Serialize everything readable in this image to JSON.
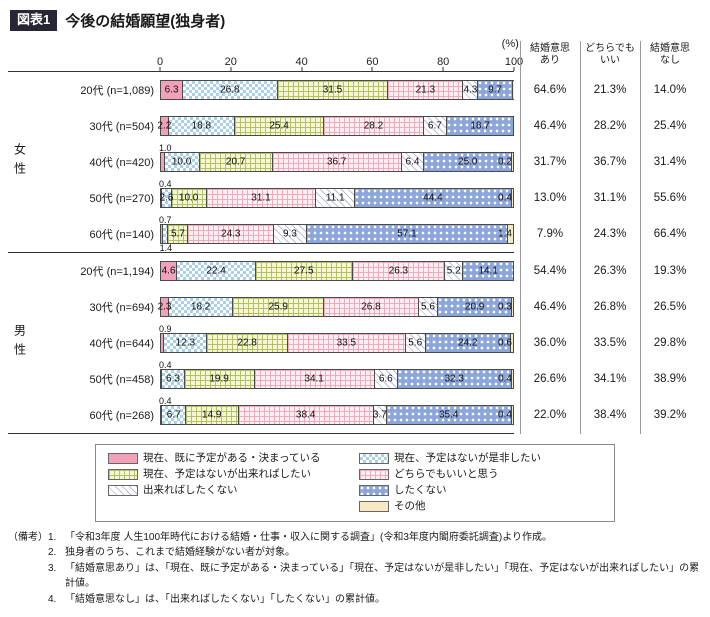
{
  "header": {
    "tag": "図表1",
    "title": "今後の結婚願望(独身者)"
  },
  "summary": {
    "columns": [
      "結婚意思\nあり",
      "どちらでも\nいい",
      "結婚意思\nなし"
    ]
  },
  "notes": {
    "tag": "（備考）",
    "items": [
      "「令和3年度 人生100年時代における結婚・仕事・収入に関する調査」(令和3年度内閣府委託調査)より作成。",
      "独身者のうち、これまで結婚経験がない者が対象。",
      "「結婚意思あり」は、「現在、既に予定がある・決まっている」「現在、予定はないが是非したい」「現在、予定はないが出来ればしたい」の累計値。",
      "「結婚意思なし」は、「出来ればしたくない」「したくない」の累計値。"
    ]
  },
  "colors": {
    "series": [
      "#f2a2b8",
      "#abd1ea",
      "#e9edba",
      "#f6ccd6",
      "#dcdff0",
      "#8ca5da",
      "#f9e9c2"
    ],
    "tag_background": "#262634",
    "tag_text": "#ffffff",
    "axis_line": "#333333",
    "table_divider": "#999999"
  },
  "chart_data": {
    "type": "bar",
    "orientation": "horizontal",
    "stacked": true,
    "title": "今後の結婚願望(独身者)",
    "unit_label": "(%)",
    "xlim": [
      0,
      100
    ],
    "xticks": [
      0,
      20,
      40,
      60,
      80,
      100
    ],
    "series_labels": [
      "現在、既に予定がある・決まっている",
      "現在、予定はないが是非したい",
      "現在、予定はないが出来ればしたい",
      "どちらでもいいと思う",
      "出来ればしたくない",
      "したくない",
      "その他"
    ],
    "summary_columns": [
      "結婚意思あり",
      "どちらでもいい",
      "結婚意思なし"
    ],
    "groups": [
      {
        "name": "女性",
        "rows": [
          {
            "label": "20代",
            "n": "(n=1,089)",
            "values": [
              6.3,
              26.8,
              31.5,
              21.3,
              4.3,
              9.7,
              0.1
            ],
            "summary": [
              "64.6%",
              "21.3%",
              "14.0%"
            ]
          },
          {
            "label": "30代",
            "n": "(n=504)",
            "values": [
              2.2,
              18.8,
              25.4,
              28.2,
              6.7,
              18.7,
              0
            ],
            "summary": [
              "46.4%",
              "28.2%",
              "25.4%"
            ]
          },
          {
            "label": "40代",
            "n": "(n=420)",
            "values": [
              1.0,
              10.0,
              20.7,
              36.7,
              6.4,
              25.0,
              0.2
            ],
            "summary": [
              "31.7%",
              "36.7%",
              "31.4%"
            ]
          },
          {
            "label": "50代",
            "n": "(n=270)",
            "values": [
              0.4,
              2.6,
              10.0,
              31.1,
              11.1,
              44.4,
              0.4
            ],
            "summary": [
              "13.0%",
              "31.1%",
              "55.6%"
            ]
          },
          {
            "label": "60代",
            "n": "(n=140)",
            "values": [
              0.7,
              1.4,
              5.7,
              24.3,
              9.3,
              57.1,
              1.4
            ],
            "summary": [
              "7.9%",
              "24.3%",
              "66.4%"
            ]
          }
        ]
      },
      {
        "name": "男性",
        "rows": [
          {
            "label": "20代",
            "n": "(n=1,194)",
            "values": [
              4.6,
              22.4,
              27.5,
              26.3,
              5.2,
              14.1,
              0
            ],
            "summary": [
              "54.4%",
              "26.3%",
              "19.3%"
            ]
          },
          {
            "label": "30代",
            "n": "(n=694)",
            "values": [
              2.3,
              18.2,
              25.9,
              26.8,
              5.6,
              20.9,
              0.3
            ],
            "summary": [
              "46.4%",
              "26.8%",
              "26.5%"
            ]
          },
          {
            "label": "40代",
            "n": "(n=644)",
            "values": [
              0.9,
              12.3,
              22.8,
              33.5,
              5.6,
              24.2,
              0.6
            ],
            "summary": [
              "36.0%",
              "33.5%",
              "29.8%"
            ]
          },
          {
            "label": "50代",
            "n": "(n=458)",
            "values": [
              0.4,
              6.3,
              19.9,
              34.1,
              6.6,
              32.3,
              0.4
            ],
            "summary": [
              "26.6%",
              "34.1%",
              "38.9%"
            ]
          },
          {
            "label": "60代",
            "n": "(n=268)",
            "values": [
              0.4,
              6.7,
              14.9,
              38.4,
              3.7,
              35.4,
              0.4
            ],
            "summary": [
              "22.0%",
              "38.4%",
              "39.2%"
            ]
          }
        ]
      }
    ]
  }
}
